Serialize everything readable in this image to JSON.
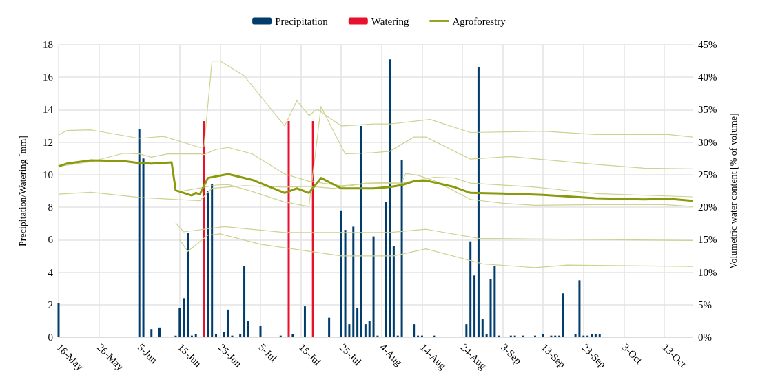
{
  "chart_data": {
    "type": "bar",
    "ylabel": "Precipitation/Watering [mm]",
    "y2label": "Volumetric water content [% of volume]",
    "xlim": [
      "--05-16",
      "--10-20"
    ],
    "xticks": [
      {
        "value": "--05-16",
        "label": "16-May"
      },
      {
        "value": "--05-26",
        "label": "26-May"
      },
      {
        "value": "--06-05",
        "label": "5-Jun"
      },
      {
        "value": "--06-15",
        "label": "15-Jun"
      },
      {
        "value": "--06-25",
        "label": "25-Jun"
      },
      {
        "value": "--07-05",
        "label": "5-Jul"
      },
      {
        "value": "--07-15",
        "label": "15-Jul"
      },
      {
        "value": "--07-25",
        "label": "25-Jul"
      },
      {
        "value": "--08-04",
        "label": "4-Aug"
      },
      {
        "value": "--08-14",
        "label": "14-Aug"
      },
      {
        "value": "--08-24",
        "label": "24-Aug"
      },
      {
        "value": "--09-03",
        "label": "3-Sep"
      },
      {
        "value": "--09-13",
        "label": "13-Sep"
      },
      {
        "value": "--09-23",
        "label": "23-Sep"
      },
      {
        "value": "--10-03",
        "label": "3-Oct"
      },
      {
        "value": "--10-13",
        "label": "13-Oct"
      }
    ],
    "ylim": [
      0,
      18
    ],
    "yticks": [
      0,
      2,
      4,
      6,
      8,
      10,
      12,
      14,
      16,
      18
    ],
    "y2lim": [
      0,
      45
    ],
    "y2ticks": [
      {
        "value": 0,
        "label": "0%"
      },
      {
        "value": 5,
        "label": "5%"
      },
      {
        "value": 10,
        "label": "10%"
      },
      {
        "value": 15,
        "label": "15%"
      },
      {
        "value": 20,
        "label": "20%"
      },
      {
        "value": 25,
        "label": "25%"
      },
      {
        "value": 30,
        "label": "30%"
      },
      {
        "value": 35,
        "label": "35%"
      },
      {
        "value": 40,
        "label": "40%"
      },
      {
        "value": 45,
        "label": "45%"
      }
    ],
    "grid": true,
    "legend": "top",
    "marker": "none",
    "series": [
      {
        "name": "Precipitation",
        "color": "#003c6c",
        "x": [
          "--05-16",
          "--06-05",
          "--06-06",
          "--06-08",
          "--06-10",
          "--06-14",
          "--06-15",
          "--06-16",
          "--06-17",
          "--06-18",
          "--06-19",
          "--06-22",
          "--06-23",
          "--06-24",
          "--06-26",
          "--06-27",
          "--06-28",
          "--06-30",
          "--07-01",
          "--07-02",
          "--07-05",
          "--07-10",
          "--07-13",
          "--07-16",
          "--07-22",
          "--07-25",
          "--07-26",
          "--07-27",
          "--07-28",
          "--07-29",
          "--07-30",
          "--07-31",
          "--08-01",
          "--08-02",
          "--08-03",
          "--08-05",
          "--08-06",
          "--08-07",
          "--08-08",
          "--08-09",
          "--08-12",
          "--08-13",
          "--08-14",
          "--08-17",
          "--08-25",
          "--08-26",
          "--08-27",
          "--08-28",
          "--08-29",
          "--08-30",
          "--08-31",
          "--09-01",
          "--09-02",
          "--09-05",
          "--09-06",
          "--09-08",
          "--09-11",
          "--09-13",
          "--09-15",
          "--09-16",
          "--09-17",
          "--09-18",
          "--09-21",
          "--09-22",
          "--09-23",
          "--09-24",
          "--09-25",
          "--09-26",
          "--09-27"
        ],
        "values": [
          2.1,
          12.8,
          11.0,
          0.5,
          0.6,
          0.1,
          1.8,
          2.4,
          6.4,
          0.1,
          0.2,
          9.0,
          9.4,
          0.2,
          0.3,
          1.7,
          0.1,
          0.2,
          4.4,
          1.0,
          0.7,
          0.1,
          0.2,
          1.9,
          1.2,
          7.8,
          6.6,
          0.8,
          6.8,
          1.8,
          13.0,
          0.8,
          1.0,
          6.2,
          0.1,
          8.3,
          17.1,
          5.6,
          0.1,
          10.9,
          0.8,
          0.1,
          0.1,
          0.1,
          0.8,
          5.9,
          3.8,
          16.6,
          1.1,
          0.2,
          3.6,
          4.4,
          0.1,
          0.1,
          0.1,
          0.1,
          0.1,
          0.2,
          0.1,
          0.1,
          0.1,
          2.7,
          0.2,
          3.5,
          0.1,
          0.1,
          0.2,
          0.2,
          0.2
        ]
      },
      {
        "name": "Watering",
        "color": "#e8112d",
        "x": [
          "--06-21",
          "--07-12",
          "--07-18"
        ],
        "values": [
          13.3,
          13.3,
          13.3
        ]
      },
      {
        "name": "Agroforestry",
        "type": "line",
        "axis": "y2",
        "color": "#8a9a0c",
        "x": [
          "--05-16",
          "--05-18",
          "--05-24",
          "--06-01",
          "--06-05",
          "--06-08",
          "--06-13",
          "--06-14",
          "--06-18",
          "--06-19",
          "--06-20",
          "--06-22",
          "--06-27",
          "--07-03",
          "--07-11",
          "--07-14",
          "--07-17",
          "--07-20",
          "--07-25",
          "--08-02",
          "--08-06",
          "--08-09",
          "--08-12",
          "--08-15",
          "--08-22",
          "--08-26",
          "--09-03",
          "--09-13",
          "--09-26",
          "--10-08",
          "--10-14",
          "--10-20"
        ],
        "values": [
          26.3,
          26.7,
          27.2,
          27.1,
          26.8,
          26.7,
          26.9,
          22.6,
          21.8,
          22.2,
          22.0,
          24.5,
          25.1,
          24.2,
          22.2,
          22.9,
          22.2,
          24.5,
          22.9,
          22.9,
          23.1,
          23.4,
          24.0,
          24.1,
          23.1,
          22.2,
          22.1,
          21.9,
          21.4,
          21.2,
          21.3,
          21.0
        ]
      },
      {
        "type": "line",
        "axis": "y2",
        "color": "#cfd190",
        "x": [
          "--05-16",
          "--05-18",
          "--05-24",
          "--06-05",
          "--06-11",
          "--06-20",
          "--06-21",
          "--06-23",
          "--06-25",
          "--07-01",
          "--07-05",
          "--07-11",
          "--07-14",
          "--07-17",
          "--07-19",
          "--07-25",
          "--08-02",
          "--08-06",
          "--08-16",
          "--08-26",
          "--09-13",
          "--09-26",
          "--10-14",
          "--10-20"
        ],
        "values": [
          31.1,
          31.8,
          31.9,
          30.6,
          30.9,
          29.2,
          29.3,
          42.5,
          42.5,
          40.2,
          37.1,
          32.5,
          36.4,
          34.1,
          35.1,
          32.5,
          32.8,
          32.8,
          33.5,
          31.5,
          31.7,
          31.2,
          31.2,
          30.8
        ]
      },
      {
        "type": "line",
        "axis": "y2",
        "color": "#cfd190",
        "x": [
          "--05-16",
          "--05-24",
          "--06-01",
          "--06-05",
          "--06-08",
          "--06-12",
          "--06-20",
          "--06-21",
          "--06-24",
          "--06-27",
          "--07-03",
          "--07-11",
          "--07-17",
          "--07-25",
          "--08-02",
          "--08-09",
          "--08-10",
          "--08-13",
          "--08-17",
          "--08-26",
          "--09-03",
          "--09-11",
          "--09-26",
          "--10-13",
          "--10-20"
        ],
        "values": [
          26.3,
          27.0,
          28.3,
          28.2,
          27.7,
          28.2,
          28.2,
          28.1,
          28.9,
          29.2,
          28.2,
          25.1,
          24.0,
          23.3,
          23.7,
          23.9,
          25.2,
          24.9,
          24.1,
          21.2,
          20.6,
          20.3,
          20.4,
          20.4,
          20.1
        ]
      },
      {
        "type": "line",
        "axis": "y2",
        "color": "#cfd190",
        "x": [
          "--06-15",
          "--06-24",
          "--06-27",
          "--07-03",
          "--07-11",
          "--07-17",
          "--07-20",
          "--07-21",
          "--07-26",
          "--08-02",
          "--08-06",
          "--08-12",
          "--08-15",
          "--08-26",
          "--09-05",
          "--09-26",
          "--10-08",
          "--10-20"
        ],
        "values": [
          22.4,
          23.4,
          23.5,
          22.4,
          20.8,
          20.1,
          35.5,
          34.2,
          28.2,
          28.4,
          28.6,
          30.8,
          30.8,
          27.4,
          27.8,
          26.6,
          26.0,
          25.9
        ]
      },
      {
        "type": "line",
        "axis": "y2",
        "color": "#cfd190",
        "x": [
          "--05-16",
          "--05-24",
          "--06-05",
          "--06-20",
          "--06-23",
          "--07-01",
          "--07-11",
          "--07-17",
          "--07-23",
          "--07-31",
          "--08-09",
          "--08-17",
          "--08-22",
          "--08-26",
          "--09-11",
          "--09-26",
          "--10-20"
        ],
        "values": [
          22.0,
          22.3,
          21.5,
          21.0,
          22.9,
          23.3,
          23.1,
          23.2,
          22.9,
          23.7,
          23.7,
          24.6,
          24.5,
          23.7,
          23.1,
          22.1,
          21.6
        ]
      },
      {
        "type": "line",
        "axis": "y2",
        "color": "#cfd190",
        "x": [
          "--06-14",
          "--06-16",
          "--06-26",
          "--07-11",
          "--08-06",
          "--08-15",
          "--08-28",
          "--10-20"
        ],
        "values": [
          17.6,
          16.2,
          17.0,
          16.1,
          16.1,
          16.6,
          15.2,
          14.9
        ]
      },
      {
        "type": "line",
        "axis": "y2",
        "color": "#cfd190",
        "x": [
          "--06-15",
          "--06-17",
          "--06-22",
          "--06-25",
          "--07-05",
          "--07-25",
          "--08-07",
          "--08-15",
          "--08-29",
          "--09-11",
          "--09-19",
          "--10-20"
        ],
        "values": [
          15.0,
          13.2,
          15.7,
          15.9,
          14.3,
          12.5,
          12.5,
          13.6,
          11.3,
          10.7,
          11.1,
          10.9
        ]
      }
    ]
  }
}
